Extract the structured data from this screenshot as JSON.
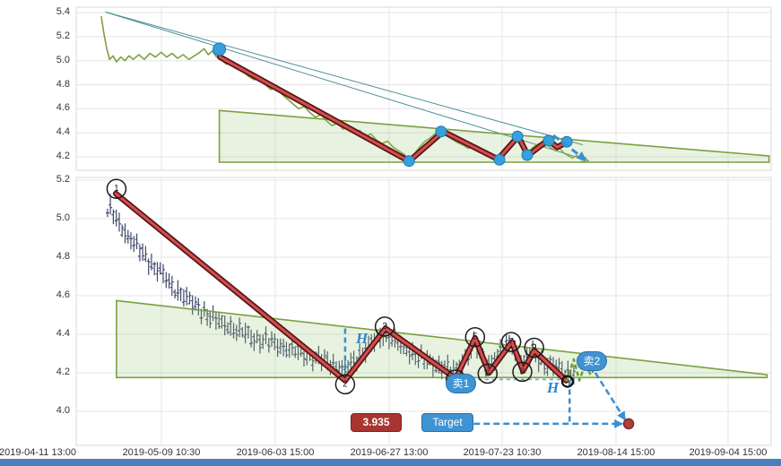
{
  "annotations": {
    "sell1": "卖1",
    "sell2": "卖2",
    "price_label": "3.935",
    "target_label": "Target",
    "h_label": "H"
  },
  "colors": {
    "accent_blue": "#3a8fd0",
    "wave_red_core": "#d14f4f",
    "wave_red_edge": "#5a1414",
    "price_green": "#7f9f3f",
    "wedge_stroke": "#7aa13f",
    "wedge_fill": "rgba(150,195,115,0.22)",
    "trend_teal": "#4a8f96",
    "candle": "#3f4a6b",
    "dot_blue": "#35a0dd",
    "scrollbar_blue": "#4d7dbe"
  },
  "chart_data": [
    {
      "type": "line",
      "panel": "top",
      "title": "",
      "xlabel": "",
      "ylabel": "",
      "x_unit": "fraction_of_plot_width",
      "ylim": [
        4.088,
        5.445
      ],
      "yticks": [
        5.4,
        5.2,
        5.0,
        4.8,
        4.6,
        4.4,
        4.2
      ],
      "grid": true,
      "price_line": {
        "name": "price",
        "points": [
          [
            0.036,
            5.37
          ],
          [
            0.04,
            5.22
          ],
          [
            0.044,
            5.1
          ],
          [
            0.048,
            5.01
          ],
          [
            0.053,
            5.04
          ],
          [
            0.058,
            4.99
          ],
          [
            0.064,
            5.03
          ],
          [
            0.07,
            5.0
          ],
          [
            0.076,
            5.04
          ],
          [
            0.082,
            5.01
          ],
          [
            0.09,
            5.05
          ],
          [
            0.098,
            5.01
          ],
          [
            0.106,
            5.06
          ],
          [
            0.114,
            5.03
          ],
          [
            0.122,
            5.07
          ],
          [
            0.13,
            5.03
          ],
          [
            0.138,
            5.06
          ],
          [
            0.146,
            5.02
          ],
          [
            0.154,
            5.05
          ],
          [
            0.162,
            5.01
          ],
          [
            0.17,
            5.04
          ],
          [
            0.178,
            5.07
          ],
          [
            0.184,
            5.1
          ],
          [
            0.19,
            5.05
          ],
          [
            0.196,
            5.08
          ],
          [
            0.202,
            5.03
          ],
          [
            0.206,
            5.05
          ],
          [
            0.21,
            5.0
          ],
          [
            0.216,
            4.97
          ],
          [
            0.222,
            4.99
          ],
          [
            0.228,
            4.94
          ],
          [
            0.234,
            4.96
          ],
          [
            0.24,
            4.91
          ],
          [
            0.248,
            4.87
          ],
          [
            0.256,
            4.84
          ],
          [
            0.264,
            4.86
          ],
          [
            0.272,
            4.8
          ],
          [
            0.28,
            4.76
          ],
          [
            0.288,
            4.78
          ],
          [
            0.296,
            4.72
          ],
          [
            0.304,
            4.68
          ],
          [
            0.312,
            4.64
          ],
          [
            0.32,
            4.6
          ],
          [
            0.328,
            4.62
          ],
          [
            0.336,
            4.57
          ],
          [
            0.344,
            4.53
          ],
          [
            0.352,
            4.55
          ],
          [
            0.36,
            4.5
          ],
          [
            0.368,
            4.46
          ],
          [
            0.376,
            4.48
          ],
          [
            0.384,
            4.43
          ],
          [
            0.392,
            4.45
          ],
          [
            0.4,
            4.4
          ],
          [
            0.408,
            4.42
          ],
          [
            0.416,
            4.37
          ],
          [
            0.424,
            4.39
          ],
          [
            0.432,
            4.34
          ],
          [
            0.44,
            4.31
          ],
          [
            0.448,
            4.33
          ],
          [
            0.456,
            4.28
          ],
          [
            0.464,
            4.25
          ],
          [
            0.472,
            4.22
          ],
          [
            0.479,
            4.18
          ],
          [
            0.486,
            4.22
          ],
          [
            0.494,
            4.28
          ],
          [
            0.502,
            4.33
          ],
          [
            0.51,
            4.36
          ],
          [
            0.518,
            4.4
          ],
          [
            0.525,
            4.42
          ],
          [
            0.532,
            4.38
          ],
          [
            0.54,
            4.35
          ],
          [
            0.548,
            4.32
          ],
          [
            0.556,
            4.3
          ],
          [
            0.564,
            4.27
          ],
          [
            0.572,
            4.29
          ],
          [
            0.58,
            4.26
          ],
          [
            0.588,
            4.23
          ],
          [
            0.596,
            4.21
          ],
          [
            0.604,
            4.19
          ],
          [
            0.61,
            4.22
          ],
          [
            0.618,
            4.26
          ],
          [
            0.626,
            4.3
          ],
          [
            0.634,
            4.33
          ],
          [
            0.642,
            4.28
          ],
          [
            0.648,
            4.24
          ],
          [
            0.654,
            4.26
          ],
          [
            0.66,
            4.29
          ],
          [
            0.666,
            4.31
          ],
          [
            0.672,
            4.28
          ],
          [
            0.678,
            4.3
          ],
          [
            0.684,
            4.27
          ],
          [
            0.69,
            4.25
          ],
          [
            0.696,
            4.27
          ],
          [
            0.702,
            4.23
          ],
          [
            0.708,
            4.21
          ],
          [
            0.714,
            4.19
          ],
          [
            0.72,
            4.21
          ],
          [
            0.726,
            4.18
          ],
          [
            0.732,
            4.17
          ]
        ]
      },
      "wave_line": {
        "name": "wave-overlay",
        "points": [
          [
            0.207,
            5.03
          ],
          [
            0.479,
            4.163
          ],
          [
            0.528,
            4.41
          ],
          [
            0.607,
            4.18
          ],
          [
            0.636,
            4.37
          ],
          [
            0.65,
            4.21
          ],
          [
            0.679,
            4.34
          ],
          [
            0.692,
            4.28
          ],
          [
            0.706,
            4.32
          ]
        ]
      },
      "dots": [
        [
          0.206,
          5.095,
          7
        ],
        [
          0.479,
          4.165,
          6
        ],
        [
          0.525,
          4.41,
          6
        ],
        [
          0.609,
          4.175,
          6
        ],
        [
          0.635,
          4.37,
          6
        ],
        [
          0.649,
          4.215,
          6
        ],
        [
          0.68,
          4.335,
          6
        ],
        [
          0.706,
          4.325,
          6
        ]
      ],
      "trendlines": [
        [
          [
            0.042,
            5.405
          ],
          [
            0.737,
            4.168
          ]
        ],
        [
          [
            0.042,
            5.405
          ],
          [
            0.729,
            4.3
          ]
        ]
      ],
      "wedge": [
        [
          0.206,
          4.585
        ],
        [
          0.997,
          4.207
        ],
        [
          0.997,
          4.155
        ],
        [
          0.206,
          4.155
        ]
      ],
      "dashed_arrow": [
        [
          0.6865,
          4.379
        ],
        [
          0.733,
          4.175
        ]
      ]
    },
    {
      "type": "candlestick",
      "panel": "bottom",
      "title": "",
      "xlabel": "",
      "ylabel": "",
      "x_unit": "fraction_of_plot_width",
      "ylim": [
        3.823,
        5.214
      ],
      "yticks": [
        5.2,
        5.0,
        4.8,
        4.6,
        4.4,
        4.2,
        4.0
      ],
      "grid": true,
      "x_labels": [
        "2019-04-11 13:00",
        "2019-05-09 10:30",
        "2019-06-03 15:00",
        "2019-06-27 13:00",
        "2019-07-23 10:30",
        "2019-08-14 15:00",
        "2019-09-04 15:00"
      ],
      "price_path": [
        [
          0.045,
          5.03
        ],
        [
          0.05,
          5.06
        ],
        [
          0.055,
          5.0
        ],
        [
          0.062,
          4.97
        ],
        [
          0.07,
          4.93
        ],
        [
          0.078,
          4.9
        ],
        [
          0.086,
          4.86
        ],
        [
          0.094,
          4.82
        ],
        [
          0.102,
          4.79
        ],
        [
          0.11,
          4.76
        ],
        [
          0.118,
          4.74
        ],
        [
          0.126,
          4.7
        ],
        [
          0.134,
          4.66
        ],
        [
          0.142,
          4.63
        ],
        [
          0.15,
          4.62
        ],
        [
          0.158,
          4.59
        ],
        [
          0.166,
          4.56
        ],
        [
          0.174,
          4.54
        ],
        [
          0.182,
          4.52
        ],
        [
          0.19,
          4.5
        ],
        [
          0.198,
          4.48
        ],
        [
          0.206,
          4.46
        ],
        [
          0.214,
          4.45
        ],
        [
          0.222,
          4.44
        ],
        [
          0.23,
          4.42
        ],
        [
          0.238,
          4.41
        ],
        [
          0.246,
          4.4
        ],
        [
          0.254,
          4.38
        ],
        [
          0.262,
          4.37
        ],
        [
          0.27,
          4.37
        ],
        [
          0.278,
          4.36
        ],
        [
          0.286,
          4.35
        ],
        [
          0.294,
          4.34
        ],
        [
          0.302,
          4.33
        ],
        [
          0.31,
          4.32
        ],
        [
          0.318,
          4.31
        ],
        [
          0.326,
          4.3
        ],
        [
          0.334,
          4.29
        ],
        [
          0.342,
          4.28
        ],
        [
          0.35,
          4.27
        ],
        [
          0.358,
          4.26
        ],
        [
          0.366,
          4.25
        ],
        [
          0.374,
          4.24
        ],
        [
          0.382,
          4.22
        ],
        [
          0.387,
          4.21
        ],
        [
          0.394,
          4.24
        ],
        [
          0.402,
          4.27
        ],
        [
          0.412,
          4.31
        ],
        [
          0.422,
          4.34
        ],
        [
          0.432,
          4.37
        ],
        [
          0.44,
          4.39
        ],
        [
          0.445,
          4.4
        ],
        [
          0.452,
          4.38
        ],
        [
          0.46,
          4.36
        ],
        [
          0.47,
          4.33
        ],
        [
          0.48,
          4.31
        ],
        [
          0.49,
          4.29
        ],
        [
          0.5,
          4.27
        ],
        [
          0.51,
          4.25
        ],
        [
          0.52,
          4.24
        ],
        [
          0.53,
          4.23
        ],
        [
          0.54,
          4.21
        ],
        [
          0.546,
          4.2
        ],
        [
          0.552,
          4.24
        ],
        [
          0.56,
          4.28
        ],
        [
          0.568,
          4.32
        ],
        [
          0.574,
          4.35
        ],
        [
          0.58,
          4.31
        ],
        [
          0.586,
          4.27
        ],
        [
          0.592,
          4.24
        ],
        [
          0.598,
          4.26
        ],
        [
          0.606,
          4.29
        ],
        [
          0.614,
          4.32
        ],
        [
          0.62,
          4.34
        ],
        [
          0.627,
          4.35
        ],
        [
          0.632,
          4.31
        ],
        [
          0.638,
          4.27
        ],
        [
          0.643,
          4.24
        ],
        [
          0.648,
          4.27
        ],
        [
          0.654,
          4.3
        ],
        [
          0.659,
          4.31
        ],
        [
          0.664,
          4.28
        ],
        [
          0.67,
          4.26
        ],
        [
          0.678,
          4.24
        ],
        [
          0.686,
          4.23
        ],
        [
          0.694,
          4.22
        ],
        [
          0.702,
          4.21
        ],
        [
          0.71,
          4.2
        ],
        [
          0.716,
          4.2
        ]
      ],
      "bars": {
        "count": 160,
        "fr_start": 0.045,
        "fr_end": 0.716,
        "base_range": 0.022,
        "extra_range": 0.032,
        "jitter": 0.016
      },
      "wave_line": {
        "name": "wave-overlay",
        "points": [
          [
            0.057,
            5.13
          ],
          [
            0.387,
            4.16
          ],
          [
            0.445,
            4.43
          ],
          [
            0.546,
            4.17
          ],
          [
            0.574,
            4.38
          ],
          [
            0.594,
            4.2
          ],
          [
            0.627,
            4.36
          ],
          [
            0.643,
            4.21
          ],
          [
            0.659,
            4.315
          ],
          [
            0.705,
            4.16
          ]
        ]
      },
      "wave_labels": [
        [
          "1",
          0.058,
          5.155
        ],
        [
          "2",
          0.387,
          4.14
        ],
        [
          "3",
          0.444,
          4.44
        ],
        [
          "4",
          0.546,
          4.165
        ],
        [
          "5",
          0.574,
          4.385
        ],
        [
          "6",
          0.592,
          4.195
        ],
        [
          "7",
          0.626,
          4.36
        ],
        [
          "8",
          0.642,
          4.205
        ],
        [
          "9",
          0.659,
          4.33
        ]
      ],
      "wedge": [
        [
          0.058,
          4.575
        ],
        [
          0.994,
          4.19
        ],
        [
          0.994,
          4.175
        ],
        [
          0.058,
          4.175
        ]
      ],
      "green_zigzag": [
        [
          0.706,
          4.155
        ],
        [
          0.716,
          4.27
        ],
        [
          0.724,
          4.16
        ],
        [
          0.733,
          4.25
        ],
        [
          0.74,
          4.19
        ],
        [
          0.747,
          4.225
        ]
      ],
      "dashed_v1": [
        0.387,
        4.43,
        4.155
      ],
      "dashed_v2": [
        0.71,
        4.16,
        3.935
      ],
      "dashed_connector": [
        0.578,
        0.71,
        4.165
      ],
      "target_arrow": [
        [
          0.572,
          3.935
        ],
        [
          0.786,
          3.935
        ]
      ],
      "diag_arrow": [
        [
          0.747,
          4.2
        ],
        [
          0.79,
          3.955
        ]
      ],
      "end_ring": [
        0.707,
        4.155
      ],
      "target_dot": [
        0.795,
        3.935
      ],
      "target_price": 3.935
    }
  ]
}
